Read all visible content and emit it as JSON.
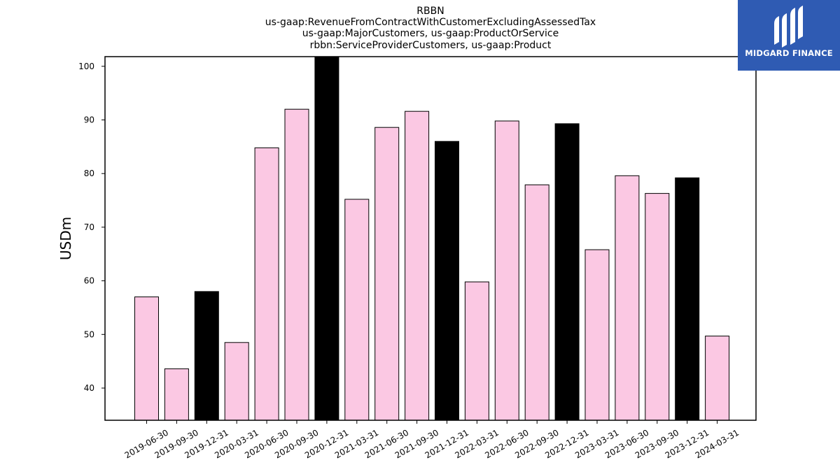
{
  "chart_data": {
    "type": "bar",
    "title_lines": [
      "RBBN",
      "us-gaap:RevenueFromContractWithCustomerExcludingAssessedTax",
      "us-gaap:MajorCustomers, us-gaap:ProductOrService",
      "rbbn:ServiceProviderCustomers, us-gaap:Product"
    ],
    "ylabel": "USDm",
    "ylim": [
      34,
      101.8
    ],
    "yticks": [
      40,
      50,
      60,
      70,
      80,
      90,
      100
    ],
    "categories": [
      "2019-06-30",
      "2019-09-30",
      "2019-12-31",
      "2020-03-31",
      "2020-06-30",
      "2020-09-30",
      "2020-12-31",
      "2021-03-31",
      "2021-06-30",
      "2021-09-30",
      "2021-12-31",
      "2022-03-31",
      "2022-06-30",
      "2022-09-30",
      "2022-12-31",
      "2023-03-31",
      "2023-06-30",
      "2023-09-30",
      "2023-12-31",
      "2024-03-31"
    ],
    "values": [
      57.0,
      43.6,
      58.0,
      48.5,
      84.8,
      92.0,
      101.8,
      75.2,
      88.6,
      91.6,
      86.0,
      59.8,
      89.8,
      77.9,
      89.3,
      65.8,
      79.6,
      76.3,
      79.2,
      49.7
    ],
    "highlight": [
      false,
      false,
      true,
      false,
      false,
      false,
      true,
      false,
      false,
      false,
      true,
      false,
      false,
      false,
      true,
      false,
      false,
      false,
      true,
      false
    ],
    "colors": {
      "normal": "#fbc8e3",
      "highlight": "#000000",
      "edge": "#000000"
    },
    "grid": false,
    "legend": "none"
  },
  "logo": {
    "text": "MIDGARD FINANCE",
    "background": "#2f5bb3",
    "icon": "midgard-logo-icon"
  }
}
